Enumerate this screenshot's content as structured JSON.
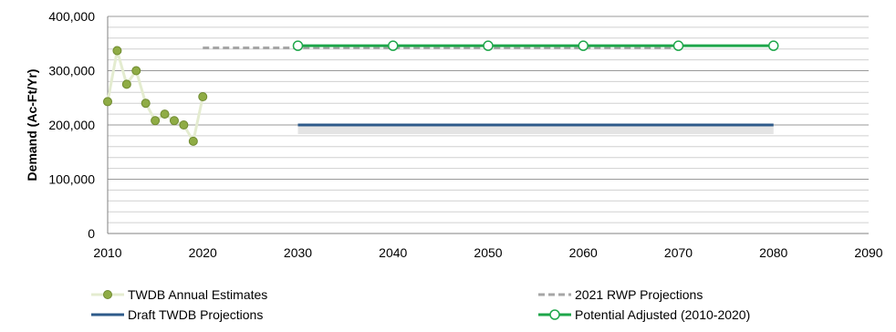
{
  "chart_data": {
    "type": "line",
    "title": "",
    "xlabel": "",
    "ylabel": "Demand (Ac-Ft/Yr)",
    "xlim": [
      2010,
      2090
    ],
    "ylim": [
      0,
      400000
    ],
    "x_ticks": [
      "2010",
      "2020",
      "2030",
      "2040",
      "2050",
      "2060",
      "2070",
      "2080",
      "2090"
    ],
    "y_ticks": [
      "0",
      "100,000",
      "200,000",
      "300,000",
      "400,000"
    ],
    "grid": true,
    "legend_position": "bottom",
    "series": [
      {
        "name": "TWDB Annual Estimates",
        "color": "#8fac45",
        "x": [
          2010,
          2011,
          2012,
          2013,
          2014,
          2015,
          2016,
          2017,
          2018,
          2019,
          2020
        ],
        "y": [
          243000,
          337000,
          275000,
          300000,
          240000,
          208000,
          220000,
          208000,
          200000,
          170000,
          252000
        ]
      },
      {
        "name": "2021 RWP Projections",
        "color": "#a6a6a6",
        "x": [
          2020,
          2030,
          2040,
          2050,
          2060,
          2070
        ],
        "y": [
          342000,
          342000,
          342000,
          342000,
          342000,
          342000
        ]
      },
      {
        "name": "Draft TWDB Projections",
        "color": "#2e5a8a",
        "x": [
          2030,
          2040,
          2050,
          2060,
          2070,
          2080
        ],
        "y": [
          200000,
          200000,
          200000,
          200000,
          200000,
          200000
        ]
      },
      {
        "name": "Potential Adjusted (2010-2020)",
        "color": "#1ea64a",
        "x": [
          2030,
          2040,
          2050,
          2060,
          2070,
          2080
        ],
        "y": [
          346000,
          346000,
          346000,
          346000,
          346000,
          346000
        ]
      }
    ]
  }
}
